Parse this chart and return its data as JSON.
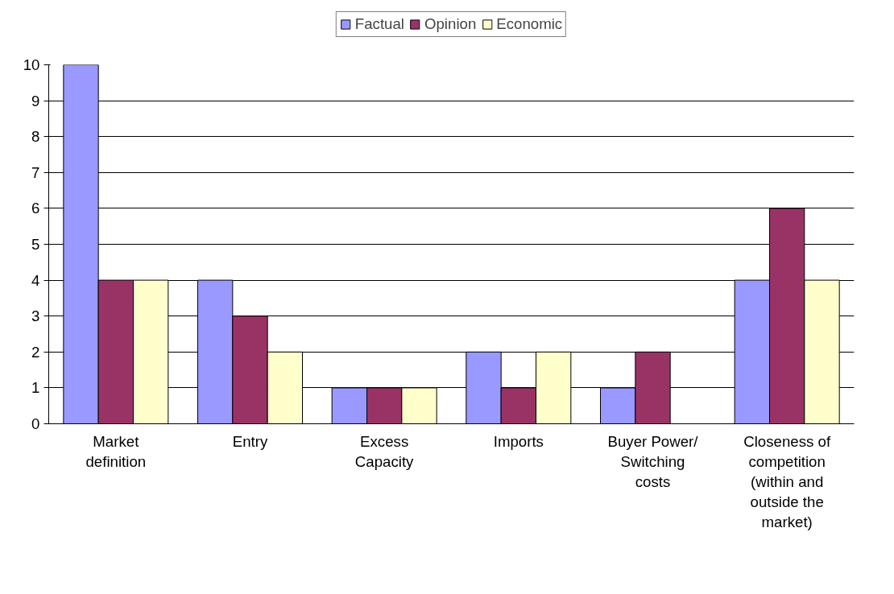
{
  "chart_data": {
    "type": "bar",
    "categories": [
      "Market definition",
      "Entry",
      "Excess Capacity",
      "Imports",
      "Buyer Power/ Switching costs",
      "Closeness of competition (within and outside the market)"
    ],
    "series": [
      {
        "name": "Factual",
        "color": "#9999ff",
        "values": [
          10,
          4,
          1,
          2,
          1,
          4
        ]
      },
      {
        "name": "Opinion",
        "color": "#993366",
        "values": [
          4,
          3,
          1,
          1,
          2,
          6
        ]
      },
      {
        "name": "Economic",
        "color": "#ffffcc",
        "values": [
          4,
          2,
          1,
          2,
          0,
          4
        ]
      }
    ],
    "ylim": [
      0,
      10
    ],
    "yticks": [
      0,
      1,
      2,
      3,
      4,
      5,
      6,
      7,
      8,
      9,
      10
    ],
    "grid": "y",
    "legend": "top"
  }
}
